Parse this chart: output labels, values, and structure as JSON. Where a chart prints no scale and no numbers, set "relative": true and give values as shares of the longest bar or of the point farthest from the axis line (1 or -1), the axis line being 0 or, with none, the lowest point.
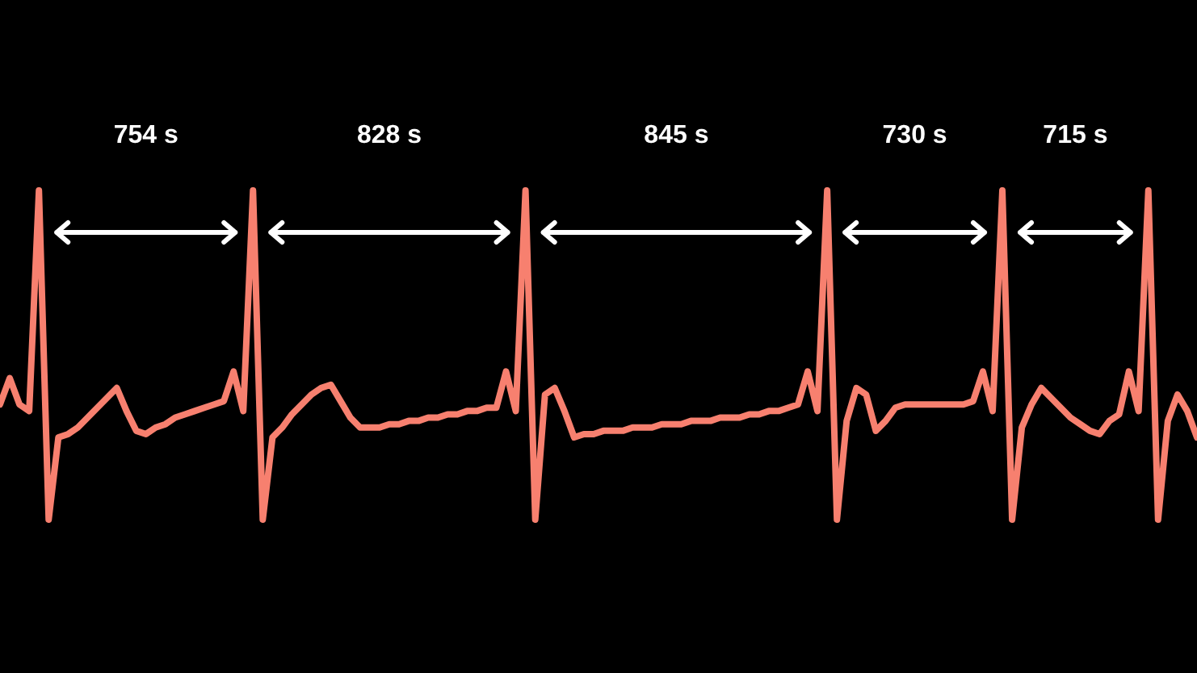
{
  "chart_data": {
    "type": "line",
    "relative": true,
    "color": "#f7806f",
    "categories": [
      null,
      null,
      null,
      null,
      null,
      null,
      null,
      null,
      null,
      null,
      null,
      null,
      null,
      null,
      null,
      null,
      null,
      null,
      null,
      null,
      null,
      null,
      null,
      null,
      null,
      null,
      null,
      null,
      null,
      null,
      null,
      null,
      null,
      null,
      null,
      null,
      null,
      null,
      null,
      null,
      null,
      null,
      null,
      null,
      null,
      null,
      null,
      null,
      null,
      null,
      null,
      null,
      null,
      null,
      null,
      null,
      null,
      null,
      null,
      null,
      null,
      null,
      null,
      null,
      null,
      null,
      null,
      null,
      null,
      null,
      null,
      null,
      null,
      null,
      null,
      null,
      null,
      null,
      null,
      null,
      null,
      null,
      null,
      null,
      null,
      null,
      null,
      null,
      null,
      null,
      null,
      null,
      null,
      null,
      null,
      null,
      null,
      null,
      null,
      null,
      null,
      null,
      null,
      null,
      null,
      null,
      null,
      null,
      null,
      null,
      null,
      null,
      null,
      null,
      null,
      null,
      null,
      null,
      null,
      null,
      null,
      null,
      null,
      null
    ],
    "values": [
      0.35,
      0.43,
      0.35,
      0.33,
      1.0,
      0,
      0.25,
      0.26,
      0.28,
      0.31,
      0.34,
      0.37,
      0.4,
      0.33,
      0.27,
      0.26,
      0.28,
      0.29,
      0.31,
      0.32,
      0.33,
      0.34,
      0.35,
      0.36,
      0.45,
      0.33,
      1.0,
      0,
      0.25,
      0.28,
      0.32,
      0.35,
      0.38,
      0.4,
      0.41,
      0.36,
      0.31,
      0.28,
      0.28,
      0.28,
      0.29,
      0.29,
      0.3,
      0.3,
      0.31,
      0.31,
      0.32,
      0.32,
      0.33,
      0.33,
      0.34,
      0.34,
      0.45,
      0.33,
      1.0,
      0,
      0.38,
      0.4,
      0.33,
      0.25,
      0.26,
      0.26,
      0.27,
      0.27,
      0.27,
      0.28,
      0.28,
      0.28,
      0.29,
      0.29,
      0.29,
      0.3,
      0.3,
      0.3,
      0.31,
      0.31,
      0.31,
      0.32,
      0.32,
      0.33,
      0.33,
      0.34,
      0.35,
      0.45,
      0.33,
      1.0,
      0,
      0.3,
      0.4,
      0.38,
      0.27,
      0.3,
      0.34,
      0.35,
      0.35,
      0.35,
      0.35,
      0.35,
      0.35,
      0.35,
      0.36,
      0.45,
      0.33,
      1.0,
      0,
      0.28,
      0.35,
      0.4,
      0.37,
      0.34,
      0.31,
      0.29,
      0.27,
      0.26,
      0.3,
      0.32,
      0.45,
      0.33,
      1.0,
      0,
      0.3,
      0.38,
      0.33,
      0.25
    ],
    "annotations": [
      "754 s",
      "828 s",
      "845 s",
      "730 s",
      "715 s"
    ]
  }
}
